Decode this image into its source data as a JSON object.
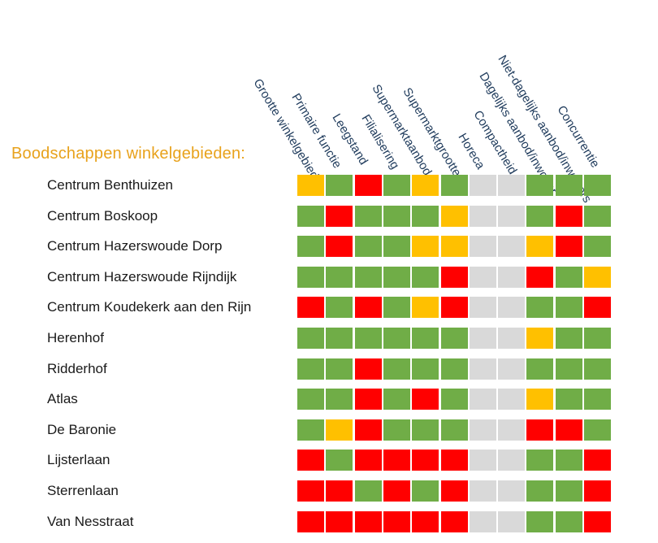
{
  "title": "Boodschappen  winkelgebieden:",
  "colors": {
    "green": "#70ad47",
    "red": "#ff0000",
    "orange": "#ffc000",
    "grey": "#d9d9d9"
  },
  "chart_data": {
    "type": "heatmap",
    "title": "Boodschappen  winkelgebieden:",
    "columns": [
      "Grootte winkelgebied",
      "Primaire functie",
      "Leegstand",
      "Filialisering",
      "Supermarktaanbod",
      "Supermarktgrootte",
      "Horeca",
      "Compactheid",
      "Dagelijks aanbod/inwoner",
      "Niet-dagelijks aanbod/inwoners",
      "Concurrentie"
    ],
    "rows": [
      "Centrum Benthuizen",
      "Centrum Boskoop",
      "Centrum Hazerswoude Dorp",
      "Centrum Hazerswoude Rijndijk",
      "Centrum Koudekerk aan den Rijn",
      "Herenhof",
      "Ridderhof",
      "Atlas",
      "De Baronie",
      "Lijsterlaan",
      "Sterrenlaan",
      "Van Nesstraat"
    ],
    "legend_note": "cell colors: green, orange, red, grey",
    "values": [
      [
        "orange",
        "green",
        "red",
        "green",
        "orange",
        "green",
        "grey",
        "grey",
        "green",
        "green",
        "green"
      ],
      [
        "green",
        "red",
        "green",
        "green",
        "green",
        "orange",
        "grey",
        "grey",
        "green",
        "red",
        "green"
      ],
      [
        "green",
        "red",
        "green",
        "green",
        "orange",
        "orange",
        "grey",
        "grey",
        "orange",
        "red",
        "green"
      ],
      [
        "green",
        "green",
        "green",
        "green",
        "green",
        "red",
        "grey",
        "grey",
        "red",
        "green",
        "orange"
      ],
      [
        "red",
        "green",
        "red",
        "green",
        "orange",
        "red",
        "grey",
        "grey",
        "green",
        "green",
        "red"
      ],
      [
        "green",
        "green",
        "green",
        "green",
        "green",
        "green",
        "grey",
        "grey",
        "orange",
        "green",
        "green"
      ],
      [
        "green",
        "green",
        "red",
        "green",
        "green",
        "green",
        "grey",
        "grey",
        "green",
        "green",
        "green"
      ],
      [
        "green",
        "green",
        "red",
        "green",
        "red",
        "green",
        "grey",
        "grey",
        "orange",
        "green",
        "green"
      ],
      [
        "green",
        "orange",
        "red",
        "green",
        "green",
        "green",
        "grey",
        "grey",
        "red",
        "red",
        "green"
      ],
      [
        "red",
        "green",
        "red",
        "red",
        "red",
        "red",
        "grey",
        "grey",
        "green",
        "green",
        "red"
      ],
      [
        "red",
        "red",
        "green",
        "red",
        "green",
        "red",
        "grey",
        "grey",
        "green",
        "green",
        "red"
      ],
      [
        "red",
        "red",
        "red",
        "red",
        "red",
        "red",
        "grey",
        "grey",
        "green",
        "green",
        "red"
      ]
    ]
  }
}
